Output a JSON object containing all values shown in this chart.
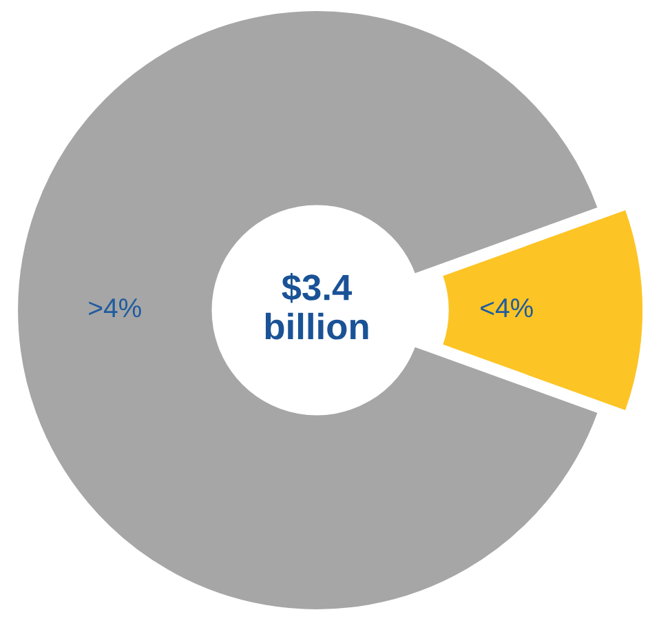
{
  "chart_data": {
    "type": "donut",
    "categories": [
      ">4%",
      "<4%"
    ],
    "values": [
      89,
      11
    ],
    "colors": [
      "#a6a6a6",
      "#fdc425"
    ],
    "annotations": [
      "$3.4\nbillion"
    ]
  }
}
